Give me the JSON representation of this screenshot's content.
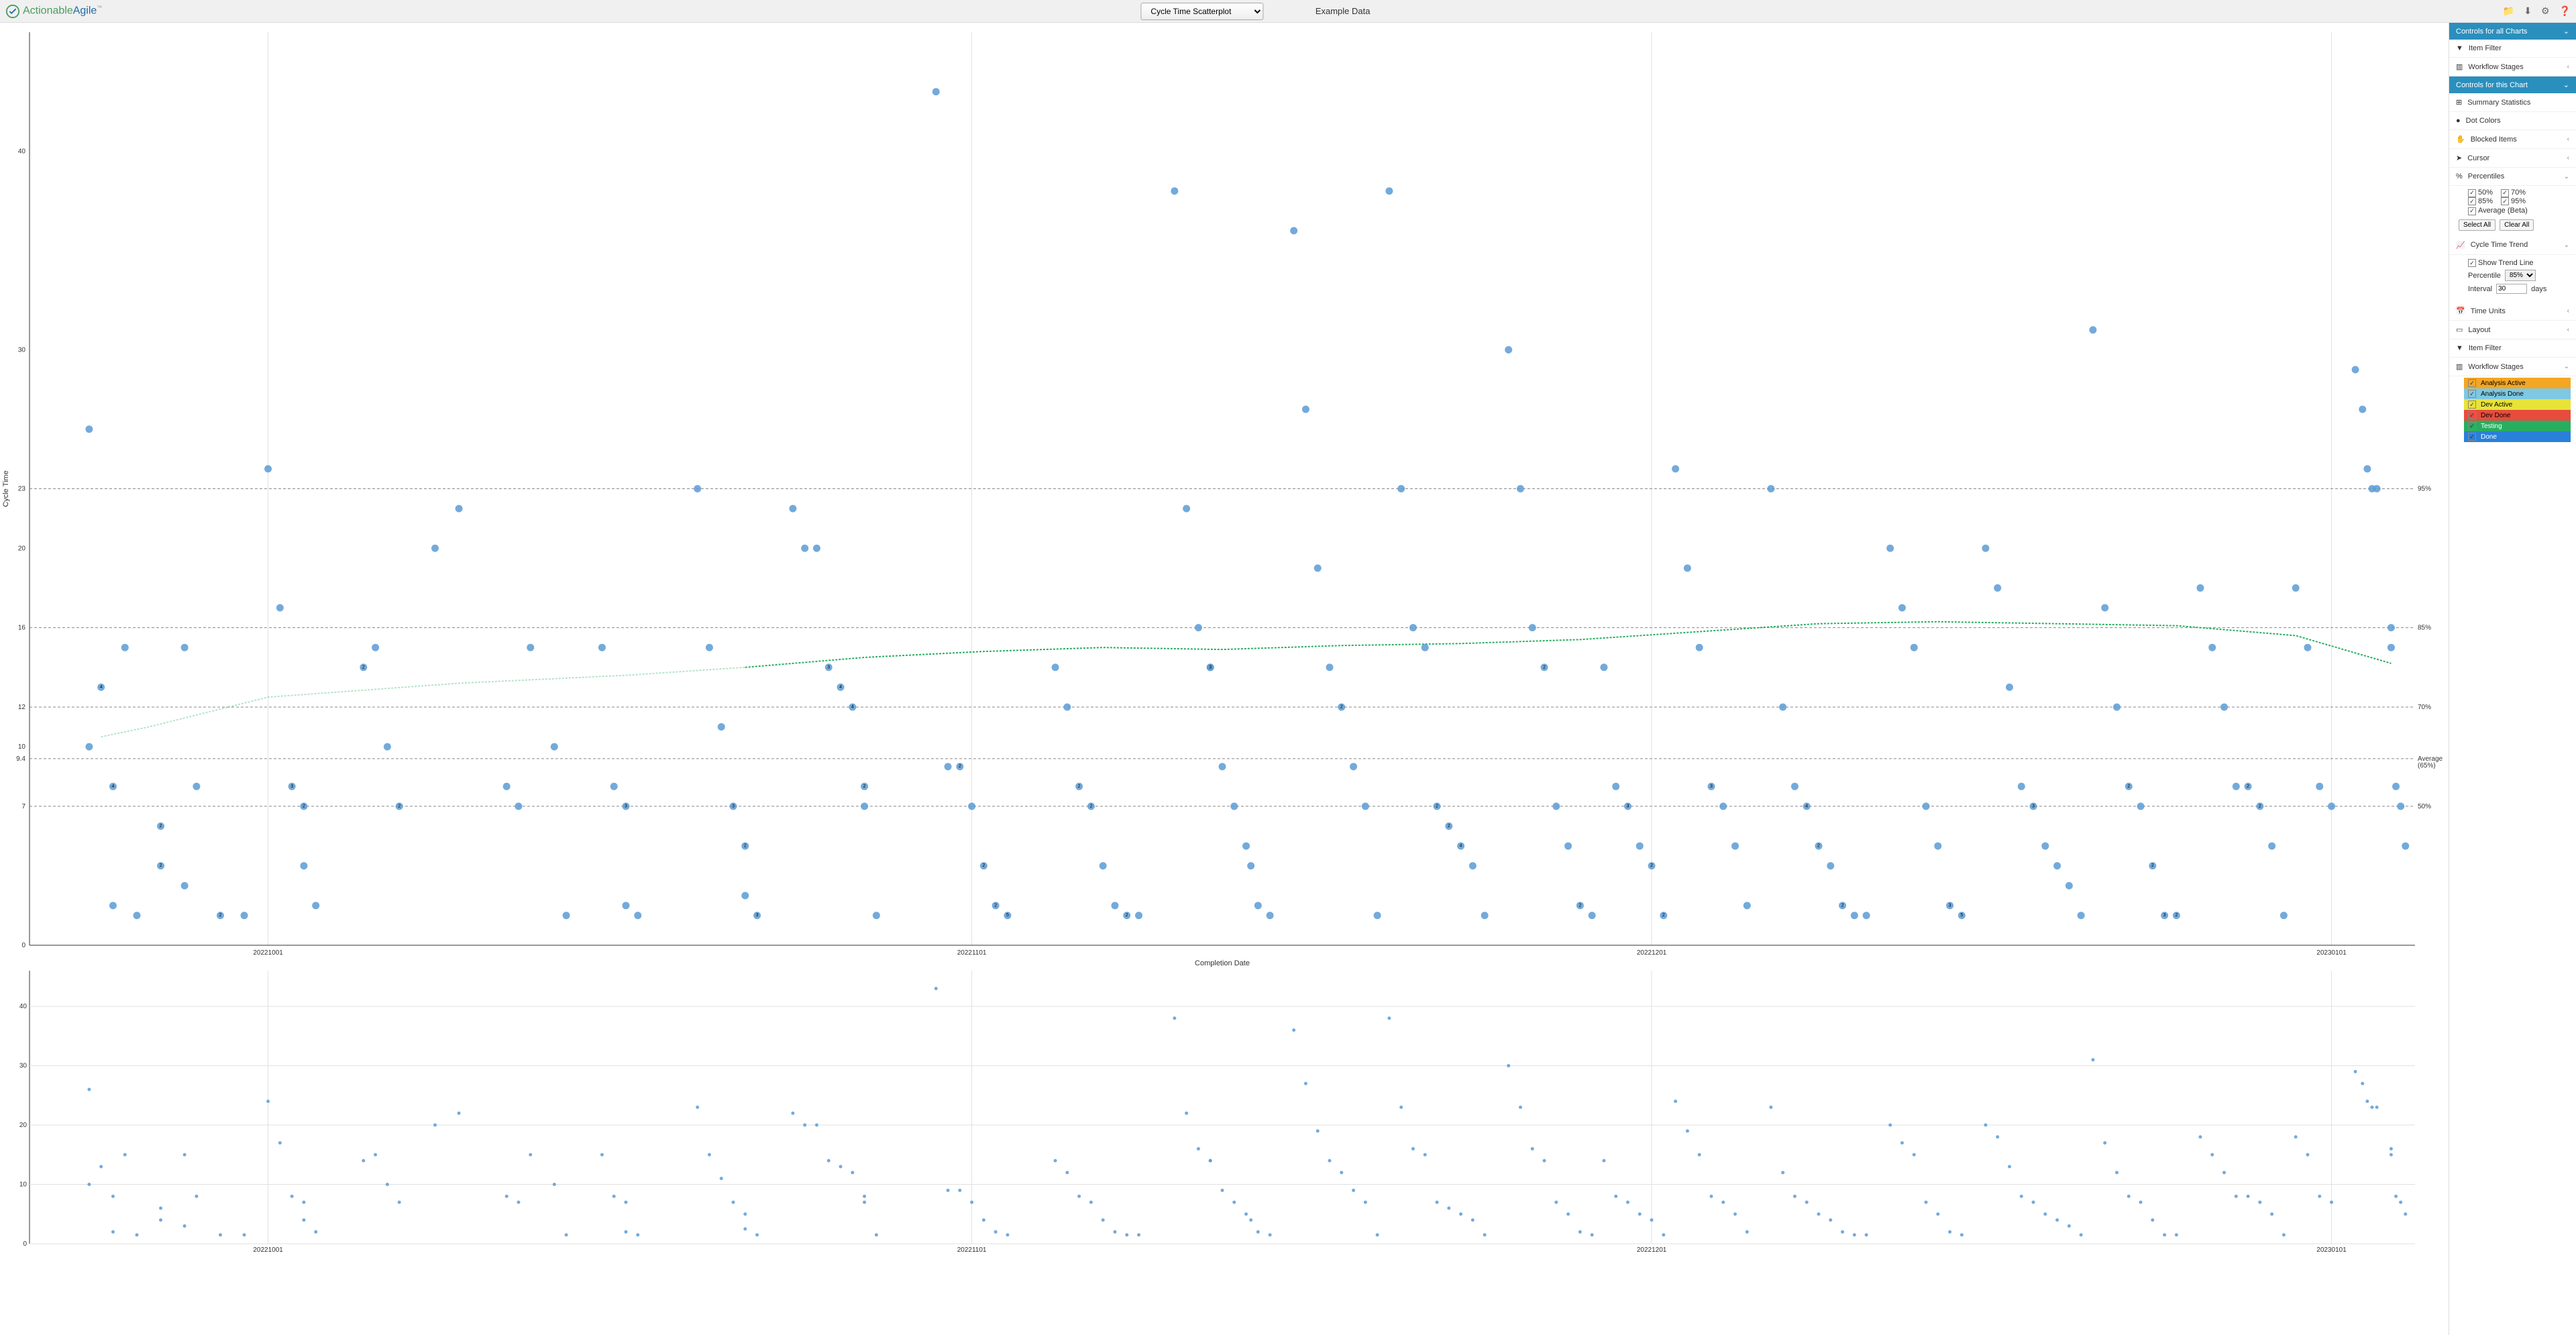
{
  "header": {
    "brand_green": "Actionable",
    "brand_blue": "Agile",
    "tm": "™",
    "chart_type": "Cycle Time Scatterplot",
    "data_title": "Example Data"
  },
  "sidebar": {
    "controls_all": "Controls for all Charts",
    "item_filter": "Item Filter",
    "workflow_stages": "Workflow Stages",
    "controls_this": "Controls for this Chart",
    "summary_stats": "Summary Statistics",
    "dot_colors": "Dot Colors",
    "blocked_items": "Blocked Items",
    "cursor": "Cursor",
    "percentiles": "Percentiles",
    "pct_50": "50%",
    "pct_70": "70%",
    "pct_85": "85%",
    "pct_95": "95%",
    "average_beta": "Average (Beta)",
    "select_all": "Select All",
    "clear_all": "Clear All",
    "cycle_trend": "Cycle Time Trend",
    "show_trend": "Show Trend Line",
    "percentile_lbl": "Percentile",
    "percentile_val": "85%",
    "interval_lbl": "Interval",
    "interval_val": "30",
    "interval_unit": "days",
    "time_units": "Time Units",
    "layout": "Layout",
    "stages": {
      "s1": "Analysis Active",
      "s2": "Analysis Done",
      "s3": "Dev Active",
      "s4": "Dev Done",
      "s5": "Testing",
      "s6": "Done"
    }
  },
  "chart": {
    "y_label": "Cycle Time",
    "x_label": "Completion Date",
    "y_ticks": [
      0,
      7,
      9.4,
      10,
      12,
      16,
      20,
      23,
      30,
      40
    ],
    "y_max": 46,
    "x_ticks": [
      "20221001",
      "20221101",
      "20221201",
      "20230101"
    ],
    "x_tick_pos": [
      0.1,
      0.395,
      0.68,
      0.965
    ],
    "pct_lines": [
      {
        "y": 23,
        "label": "95%"
      },
      {
        "y": 16,
        "label": "85%"
      },
      {
        "y": 12,
        "label": "70%"
      },
      {
        "y": 9.4,
        "label": "Average\n(65%)"
      },
      {
        "y": 7,
        "label": "50%"
      }
    ],
    "trend_early": [
      [
        0.03,
        10.5
      ],
      [
        0.05,
        11
      ],
      [
        0.1,
        12.5
      ],
      [
        0.18,
        13.2
      ],
      [
        0.25,
        13.6
      ],
      [
        0.3,
        14.0
      ]
    ],
    "trend": [
      [
        0.3,
        14.0
      ],
      [
        0.35,
        14.5
      ],
      [
        0.4,
        14.8
      ],
      [
        0.45,
        15.0
      ],
      [
        0.5,
        14.9
      ],
      [
        0.55,
        15.1
      ],
      [
        0.6,
        15.2
      ],
      [
        0.65,
        15.4
      ],
      [
        0.7,
        15.8
      ],
      [
        0.75,
        16.2
      ],
      [
        0.8,
        16.3
      ],
      [
        0.85,
        16.2
      ],
      [
        0.9,
        16.1
      ],
      [
        0.95,
        15.6
      ],
      [
        0.99,
        14.2
      ]
    ],
    "dot_color": "#5b9bd5",
    "dot_r": 5.5,
    "points": [
      [
        0.025,
        10
      ],
      [
        0.025,
        26
      ],
      [
        0.03,
        13,
        "4"
      ],
      [
        0.035,
        8,
        "4"
      ],
      [
        0.035,
        2
      ],
      [
        0.04,
        15
      ],
      [
        0.045,
        1.5
      ],
      [
        0.055,
        6,
        "2"
      ],
      [
        0.055,
        4,
        "2"
      ],
      [
        0.065,
        15
      ],
      [
        0.065,
        3
      ],
      [
        0.07,
        8
      ],
      [
        0.08,
        1.5,
        "2"
      ],
      [
        0.09,
        1.5
      ],
      [
        0.1,
        24
      ],
      [
        0.105,
        17
      ],
      [
        0.11,
        8,
        "3"
      ],
      [
        0.115,
        7,
        "2"
      ],
      [
        0.115,
        4
      ],
      [
        0.12,
        2
      ],
      [
        0.14,
        14,
        "2"
      ],
      [
        0.145,
        15
      ],
      [
        0.15,
        10
      ],
      [
        0.155,
        7,
        "2"
      ],
      [
        0.17,
        20
      ],
      [
        0.18,
        22
      ],
      [
        0.2,
        8
      ],
      [
        0.205,
        7
      ],
      [
        0.21,
        15
      ],
      [
        0.22,
        10
      ],
      [
        0.225,
        1.5
      ],
      [
        0.24,
        15
      ],
      [
        0.245,
        8
      ],
      [
        0.25,
        7,
        "3"
      ],
      [
        0.25,
        2
      ],
      [
        0.255,
        1.5
      ],
      [
        0.28,
        23
      ],
      [
        0.285,
        15
      ],
      [
        0.29,
        11
      ],
      [
        0.295,
        7,
        "3"
      ],
      [
        0.3,
        5,
        "2"
      ],
      [
        0.3,
        2.5
      ],
      [
        0.305,
        1.5,
        "3"
      ],
      [
        0.32,
        22
      ],
      [
        0.325,
        20
      ],
      [
        0.33,
        20
      ],
      [
        0.335,
        14,
        "3"
      ],
      [
        0.34,
        13,
        "4"
      ],
      [
        0.345,
        12,
        "4"
      ],
      [
        0.35,
        8,
        "2"
      ],
      [
        0.35,
        7
      ],
      [
        0.355,
        1.5
      ],
      [
        0.38,
        43
      ],
      [
        0.385,
        9
      ],
      [
        0.39,
        9,
        "2"
      ],
      [
        0.395,
        7
      ],
      [
        0.4,
        4,
        "2"
      ],
      [
        0.405,
        2,
        "2"
      ],
      [
        0.41,
        1.5,
        "5"
      ],
      [
        0.43,
        14
      ],
      [
        0.435,
        12
      ],
      [
        0.44,
        8,
        "2"
      ],
      [
        0.445,
        7,
        "2"
      ],
      [
        0.45,
        4
      ],
      [
        0.455,
        2
      ],
      [
        0.46,
        1.5,
        "2"
      ],
      [
        0.465,
        1.5
      ],
      [
        0.48,
        38
      ],
      [
        0.485,
        22
      ],
      [
        0.49,
        16
      ],
      [
        0.495,
        14,
        "2"
      ],
      [
        0.495,
        14,
        "3"
      ],
      [
        0.5,
        9
      ],
      [
        0.505,
        7
      ],
      [
        0.51,
        5
      ],
      [
        0.512,
        4
      ],
      [
        0.515,
        2
      ],
      [
        0.52,
        1.5
      ],
      [
        0.53,
        36
      ],
      [
        0.535,
        27
      ],
      [
        0.54,
        19
      ],
      [
        0.545,
        14
      ],
      [
        0.55,
        12,
        "2"
      ],
      [
        0.555,
        9
      ],
      [
        0.56,
        7
      ],
      [
        0.565,
        1.5
      ],
      [
        0.57,
        38
      ],
      [
        0.575,
        23
      ],
      [
        0.58,
        16
      ],
      [
        0.585,
        15
      ],
      [
        0.59,
        7,
        "2"
      ],
      [
        0.595,
        6,
        "2"
      ],
      [
        0.6,
        5,
        "4"
      ],
      [
        0.605,
        4
      ],
      [
        0.61,
        1.5
      ],
      [
        0.62,
        30
      ],
      [
        0.625,
        23
      ],
      [
        0.63,
        16
      ],
      [
        0.635,
        14,
        "2"
      ],
      [
        0.64,
        7
      ],
      [
        0.645,
        5
      ],
      [
        0.65,
        2,
        "2"
      ],
      [
        0.655,
        1.5
      ],
      [
        0.66,
        14
      ],
      [
        0.665,
        8
      ],
      [
        0.67,
        7,
        "3"
      ],
      [
        0.675,
        5
      ],
      [
        0.68,
        4,
        "2"
      ],
      [
        0.685,
        1.5,
        "2"
      ],
      [
        0.69,
        24
      ],
      [
        0.695,
        19
      ],
      [
        0.7,
        15
      ],
      [
        0.705,
        8,
        "3"
      ],
      [
        0.71,
        7
      ],
      [
        0.715,
        5
      ],
      [
        0.72,
        2
      ],
      [
        0.73,
        23
      ],
      [
        0.735,
        12
      ],
      [
        0.74,
        8
      ],
      [
        0.745,
        7,
        "4"
      ],
      [
        0.75,
        5,
        "2"
      ],
      [
        0.755,
        4
      ],
      [
        0.76,
        2,
        "2"
      ],
      [
        0.765,
        1.5
      ],
      [
        0.77,
        1.5
      ],
      [
        0.78,
        20
      ],
      [
        0.785,
        17
      ],
      [
        0.79,
        15
      ],
      [
        0.795,
        7
      ],
      [
        0.8,
        5
      ],
      [
        0.805,
        2,
        "3"
      ],
      [
        0.81,
        1.5,
        "5"
      ],
      [
        0.82,
        20
      ],
      [
        0.825,
        18
      ],
      [
        0.83,
        13
      ],
      [
        0.835,
        8
      ],
      [
        0.84,
        7,
        "3"
      ],
      [
        0.845,
        5
      ],
      [
        0.85,
        4
      ],
      [
        0.855,
        3
      ],
      [
        0.86,
        1.5
      ],
      [
        0.865,
        31
      ],
      [
        0.87,
        17
      ],
      [
        0.875,
        12
      ],
      [
        0.88,
        8,
        "2"
      ],
      [
        0.885,
        7
      ],
      [
        0.89,
        4,
        "2"
      ],
      [
        0.895,
        1.5,
        "3"
      ],
      [
        0.9,
        1.5,
        "2"
      ],
      [
        0.91,
        18
      ],
      [
        0.915,
        15
      ],
      [
        0.92,
        12
      ],
      [
        0.925,
        8
      ],
      [
        0.93,
        8,
        "2"
      ],
      [
        0.935,
        7,
        "2"
      ],
      [
        0.94,
        5
      ],
      [
        0.945,
        1.5
      ],
      [
        0.95,
        18
      ],
      [
        0.955,
        15
      ],
      [
        0.96,
        8
      ],
      [
        0.965,
        7
      ],
      [
        0.975,
        29
      ],
      [
        0.978,
        27
      ],
      [
        0.98,
        24
      ],
      [
        0.982,
        23
      ],
      [
        0.984,
        23
      ],
      [
        0.99,
        16
      ],
      [
        0.99,
        15
      ],
      [
        0.992,
        8
      ],
      [
        0.994,
        7
      ],
      [
        0.996,
        5
      ]
    ]
  },
  "mini": {
    "y_ticks": [
      0,
      10,
      20,
      30,
      40
    ],
    "y_max": 46
  }
}
